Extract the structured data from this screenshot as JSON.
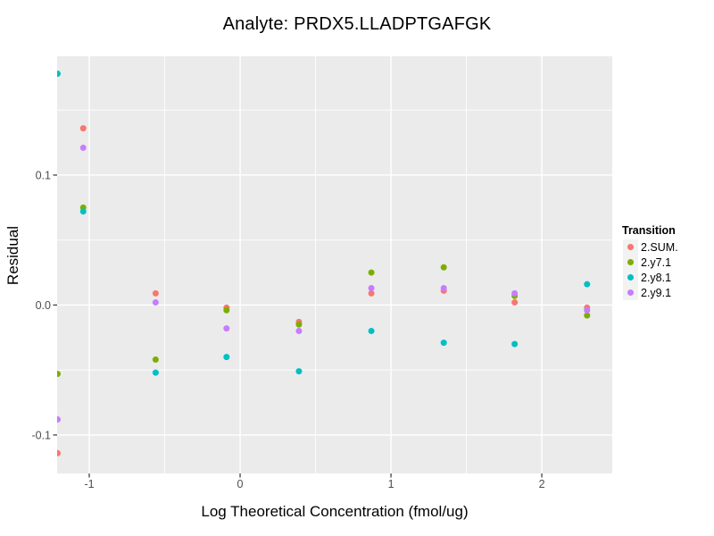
{
  "chart_data": {
    "type": "scatter",
    "title": "Analyte: PRDX5.LLADPTGAFGK",
    "xlabel": "Log Theoretical Concentration (fmol/ug)",
    "ylabel": "Residual",
    "legend_title": "Transition",
    "legend_position": "right",
    "grid": "major+minor white on gray panel",
    "xlim": [
      -1.213,
      2.467
    ],
    "ylim": [
      -0.1296,
      0.1914
    ],
    "x_tick_values": [
      -1,
      0,
      1,
      2
    ],
    "x_tick_labels": [
      "-1",
      "0",
      "1",
      "2"
    ],
    "y_tick_values": [
      0.1,
      0.0,
      -0.1
    ],
    "y_tick_labels": [
      "0.1",
      "0.0",
      "-0.1"
    ],
    "x_minor_values": [
      -0.5,
      0.5,
      1.5
    ],
    "y_minor_values": [
      0.15,
      0.05,
      -0.05
    ],
    "x": [
      -1.21,
      -1.04,
      -0.56,
      -0.09,
      0.39,
      0.87,
      1.35,
      1.82,
      2.3
    ],
    "series": [
      {
        "name": "2.SUM.",
        "color": "#F8766D",
        "values": [
          -0.114,
          0.136,
          0.009,
          -0.002,
          -0.013,
          0.009,
          0.011,
          0.002,
          -0.002
        ]
      },
      {
        "name": "2.y7.1",
        "color": "#7CAE00",
        "values": [
          -0.053,
          0.075,
          -0.042,
          -0.004,
          -0.015,
          0.025,
          0.029,
          0.007,
          -0.008
        ]
      },
      {
        "name": "2.y8.1",
        "color": "#00BFC4",
        "values": [
          0.178,
          0.072,
          -0.052,
          -0.04,
          -0.051,
          -0.02,
          -0.029,
          -0.03,
          0.016
        ]
      },
      {
        "name": "2.y9.1",
        "color": "#C77CFF",
        "values": [
          -0.088,
          0.121,
          0.002,
          -0.018,
          -0.02,
          0.013,
          0.013,
          0.009,
          -0.004
        ]
      }
    ],
    "colors": {
      "panel_bg": "#EBEBEB",
      "grid_major": "#FFFFFF",
      "grid_minor": "#FFFFFF",
      "tick_mark": "#333333",
      "tick_text": "#4D4D4D",
      "axis_text": "#000000",
      "legend_key_bg": "#F2F2F2"
    }
  }
}
